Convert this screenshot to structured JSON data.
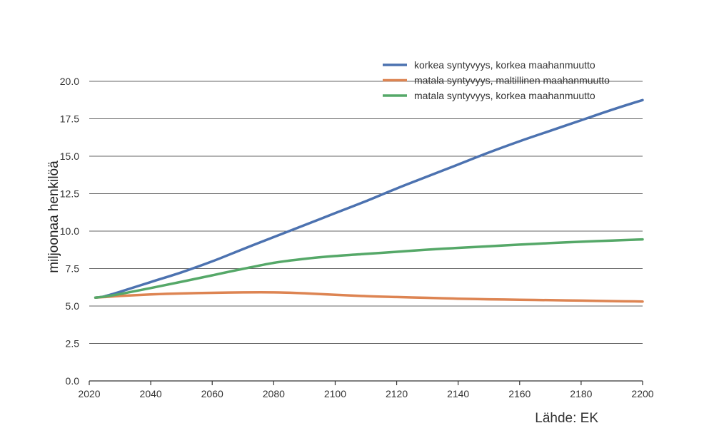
{
  "chart_data": {
    "type": "line",
    "title": "",
    "xlabel": "",
    "ylabel": "miljoonaa henkilöä",
    "xlim": [
      2020,
      2200
    ],
    "ylim": [
      0,
      20
    ],
    "xticks": [
      "2020",
      "2040",
      "2060",
      "2080",
      "2100",
      "2120",
      "2140",
      "2160",
      "2180",
      "2200"
    ],
    "yticks": [
      "0.0",
      "2.5",
      "5.0",
      "7.5",
      "10.0",
      "12.5",
      "15.0",
      "17.5",
      "20.0"
    ],
    "grid": "horizontal",
    "legend_position": "top-right",
    "series": [
      {
        "name": "korkea syntyvyys, korkea maahanmuutto",
        "color": "#4c72b0",
        "x": [
          2022,
          2025,
          2030,
          2040,
          2050,
          2060,
          2070,
          2080,
          2090,
          2100,
          2110,
          2120,
          2130,
          2140,
          2150,
          2160,
          2170,
          2180,
          2190,
          2200
        ],
        "y": [
          5.56,
          5.65,
          5.95,
          6.6,
          7.25,
          7.98,
          8.8,
          9.6,
          10.4,
          11.2,
          12.0,
          12.85,
          13.65,
          14.45,
          15.25,
          16.0,
          16.7,
          17.4,
          18.1,
          18.75
        ]
      },
      {
        "name": "matala syntyvyys, maltillinen maahanmuutto",
        "color": "#dd8452",
        "x": [
          2022,
          2025,
          2030,
          2040,
          2050,
          2060,
          2070,
          2080,
          2090,
          2100,
          2110,
          2120,
          2130,
          2140,
          2150,
          2160,
          2170,
          2180,
          2190,
          2200
        ],
        "y": [
          5.56,
          5.6,
          5.67,
          5.77,
          5.84,
          5.88,
          5.91,
          5.91,
          5.85,
          5.75,
          5.66,
          5.6,
          5.55,
          5.49,
          5.45,
          5.42,
          5.39,
          5.36,
          5.33,
          5.3
        ]
      },
      {
        "name": "matala syntyvyys, korkea maahanmuutto",
        "color": "#55a868",
        "x": [
          2022,
          2025,
          2030,
          2040,
          2050,
          2060,
          2070,
          2080,
          2090,
          2100,
          2110,
          2120,
          2130,
          2140,
          2150,
          2160,
          2170,
          2180,
          2190,
          2200
        ],
        "y": [
          5.56,
          5.63,
          5.8,
          6.2,
          6.62,
          7.05,
          7.48,
          7.88,
          8.15,
          8.34,
          8.48,
          8.62,
          8.76,
          8.88,
          8.99,
          9.1,
          9.2,
          9.29,
          9.37,
          9.45
        ]
      }
    ]
  },
  "source": "Lähde: EK"
}
